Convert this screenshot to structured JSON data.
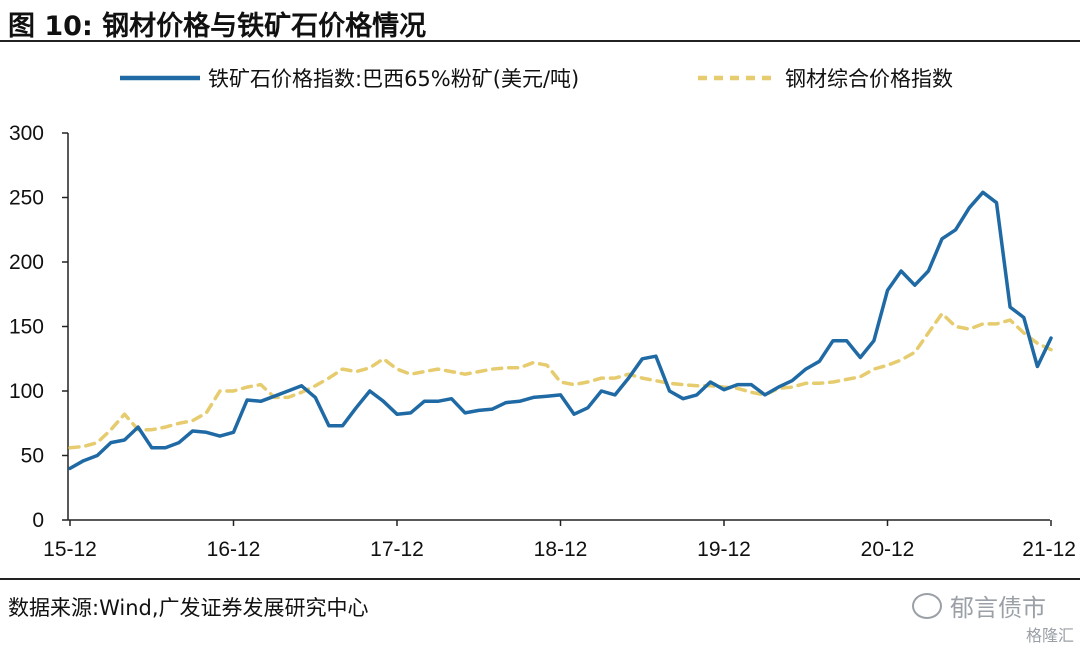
{
  "header": {
    "title": "图 10:  钢材价格与铁矿石价格情况"
  },
  "footer": {
    "source": "数据来源:Wind,广发证券发展研究中心",
    "watermark": "郁言债市",
    "badge": "格隆汇"
  },
  "chart_data": {
    "type": "line",
    "title": "",
    "xlabel": "",
    "ylabel": "",
    "ylim": [
      0,
      300
    ],
    "yticks": [
      0,
      50,
      100,
      150,
      200,
      250,
      300
    ],
    "xticks": [
      "15-12",
      "16-12",
      "17-12",
      "18-12",
      "19-12",
      "20-12",
      "21-12"
    ],
    "grid": false,
    "legend_position": "top",
    "series": [
      {
        "name": "铁矿石价格指数:巴西65%粉矿(美元/吨)",
        "color": "#1f6aa5",
        "style": "solid",
        "x": [
          "15-12",
          "16-01",
          "16-02",
          "16-03",
          "16-04",
          "16-05",
          "16-06",
          "16-07",
          "16-08",
          "16-09",
          "16-10",
          "16-11",
          "16-12",
          "17-01",
          "17-02",
          "17-03",
          "17-04",
          "17-05",
          "17-06",
          "17-07",
          "17-08",
          "17-09",
          "17-10",
          "17-11",
          "17-12",
          "18-01",
          "18-02",
          "18-03",
          "18-04",
          "18-05",
          "18-06",
          "18-07",
          "18-08",
          "18-09",
          "18-10",
          "18-11",
          "18-12",
          "19-01",
          "19-02",
          "19-03",
          "19-04",
          "19-05",
          "19-06",
          "19-07",
          "19-08",
          "19-09",
          "19-10",
          "19-11",
          "19-12",
          "20-01",
          "20-02",
          "20-03",
          "20-04",
          "20-05",
          "20-06",
          "20-07",
          "20-08",
          "20-09",
          "20-10",
          "20-11",
          "20-12",
          "21-01",
          "21-02",
          "21-03",
          "21-04",
          "21-05",
          "21-06",
          "21-07",
          "21-08",
          "21-09",
          "21-10",
          "21-11",
          "21-12"
        ],
        "y": [
          40,
          46,
          50,
          60,
          62,
          72,
          56,
          56,
          60,
          69,
          68,
          65,
          68,
          93,
          92,
          96,
          100,
          104,
          95,
          73,
          73,
          87,
          100,
          92,
          82,
          83,
          92,
          92,
          94,
          83,
          85,
          86,
          91,
          92,
          95,
          96,
          97,
          82,
          87,
          100,
          97,
          110,
          125,
          127,
          100,
          94,
          97,
          107,
          101,
          105,
          105,
          97,
          103,
          108,
          117,
          123,
          139,
          139,
          126,
          139,
          178,
          193,
          182,
          193,
          218,
          225,
          242,
          254,
          246,
          165,
          157,
          119,
          141
        ]
      },
      {
        "name": "钢材综合价格指数",
        "color": "#e6cc6e",
        "style": "dashed",
        "x": [
          "15-12",
          "16-01",
          "16-02",
          "16-03",
          "16-04",
          "16-05",
          "16-06",
          "16-07",
          "16-08",
          "16-09",
          "16-10",
          "16-11",
          "16-12",
          "17-01",
          "17-02",
          "17-03",
          "17-04",
          "17-05",
          "17-06",
          "17-07",
          "17-08",
          "17-09",
          "17-10",
          "17-11",
          "17-12",
          "18-01",
          "18-02",
          "18-03",
          "18-04",
          "18-05",
          "18-06",
          "18-07",
          "18-08",
          "18-09",
          "18-10",
          "18-11",
          "18-12",
          "19-01",
          "19-02",
          "19-03",
          "19-04",
          "19-05",
          "19-06",
          "19-07",
          "19-08",
          "19-09",
          "19-10",
          "19-11",
          "19-12",
          "20-01",
          "20-02",
          "20-03",
          "20-04",
          "20-05",
          "20-06",
          "20-07",
          "20-08",
          "20-09",
          "20-10",
          "20-11",
          "20-12",
          "21-01",
          "21-02",
          "21-03",
          "21-04",
          "21-05",
          "21-06",
          "21-07",
          "21-08",
          "21-09",
          "21-10",
          "21-11",
          "21-12"
        ],
        "y": [
          56,
          57,
          60,
          70,
          82,
          70,
          70,
          72,
          75,
          77,
          83,
          100,
          100,
          103,
          105,
          95,
          95,
          99,
          104,
          110,
          117,
          115,
          118,
          125,
          117,
          113,
          115,
          117,
          115,
          113,
          115,
          117,
          118,
          118,
          122,
          120,
          107,
          105,
          107,
          110,
          110,
          113,
          110,
          108,
          106,
          105,
          104,
          104,
          103,
          102,
          99,
          97,
          102,
          103,
          106,
          106,
          107,
          109,
          111,
          117,
          120,
          124,
          130,
          145,
          160,
          150,
          148,
          152,
          152,
          155,
          145,
          137,
          132
        ]
      }
    ]
  }
}
